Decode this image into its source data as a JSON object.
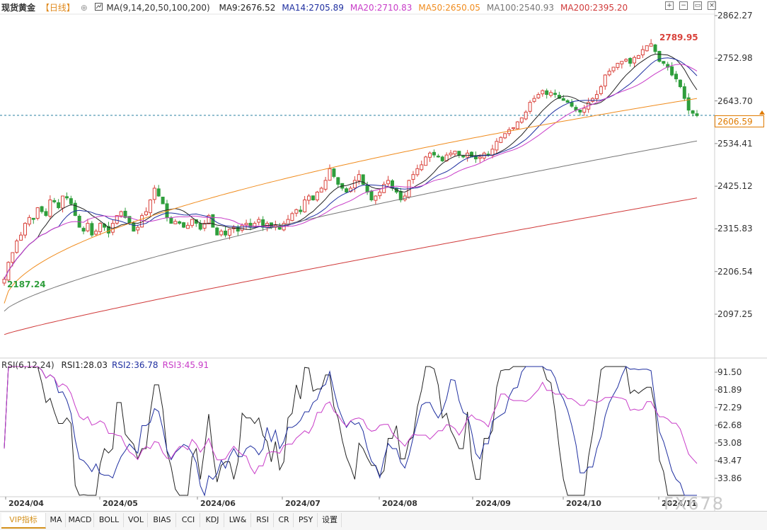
{
  "header": {
    "title": "现货黄金",
    "period": "【日线】",
    "circle_icon": "⊕",
    "ma_set_label": "MA(9,14,20,50,100,200)",
    "ma_values": [
      {
        "label": "MA9:2676.52",
        "color": "#222222"
      },
      {
        "label": "MA14:2705.89",
        "color": "#1f2fa0"
      },
      {
        "label": "MA20:2710.83",
        "color": "#c83cc8"
      },
      {
        "label": "MA50:2650.05",
        "color": "#f08c1e"
      },
      {
        "label": "MA100:2540.93",
        "color": "#777777"
      },
      {
        "label": "MA200:2395.20",
        "color": "#d03a3a"
      }
    ]
  },
  "toolbar_icons": [
    "zoom-in-icon",
    "zoom-out-icon",
    "collapse-icon",
    "close-icon"
  ],
  "price_axis": [
    "2862.27",
    "2752.98",
    "2643.70",
    "2534.41",
    "2425.12",
    "2315.83",
    "2206.54",
    "2097.25"
  ],
  "current_price": "2606.59",
  "high_label": "2789.95",
  "low_label": "2187.24",
  "rsi": {
    "header": "RSI(6,12,24)",
    "values": [
      {
        "label": "RSI1:28.03",
        "color": "#222222"
      },
      {
        "label": "RSI2:36.78",
        "color": "#1f2fa0"
      },
      {
        "label": "RSI3:45.91",
        "color": "#c83cc8"
      }
    ],
    "axis": [
      "91.50",
      "81.89",
      "72.29",
      "62.68",
      "53.08",
      "43.47",
      "33.86"
    ]
  },
  "x_axis": [
    "2024/04",
    "2024/05",
    "2024/06",
    "2024/07",
    "2024/08",
    "2024/09",
    "2024/10",
    "2024/11"
  ],
  "tabs": [
    "VIP指标",
    "MA",
    "MACD",
    "BOLL",
    "VOL",
    "BIAS",
    "CCI",
    "KDJ",
    "LW&",
    "RSI",
    "CR",
    "PSY",
    "设置"
  ],
  "watermark": "FX678",
  "colors": {
    "up": "#d9423b",
    "down": "#2f9e3c"
  },
  "chart_data": {
    "type": "candlestick",
    "ylim": [
      2040,
      2880
    ],
    "approx_closes": [
      2187,
      2230,
      2255,
      2285,
      2300,
      2330,
      2345,
      2340,
      2370,
      2360,
      2350,
      2390,
      2385,
      2370,
      2400,
      2395,
      2380,
      2350,
      2320,
      2310,
      2330,
      2300,
      2310,
      2330,
      2320,
      2305,
      2330,
      2350,
      2360,
      2345,
      2330,
      2310,
      2320,
      2350,
      2360,
      2390,
      2420,
      2400,
      2380,
      2345,
      2330,
      2335,
      2330,
      2320,
      2325,
      2340,
      2330,
      2315,
      2330,
      2350,
      2320,
      2300,
      2310,
      2300,
      2315,
      2320,
      2310,
      2325,
      2330,
      2320,
      2330,
      2340,
      2320,
      2330,
      2320,
      2325,
      2315,
      2330,
      2340,
      2355,
      2365,
      2360,
      2390,
      2400,
      2390,
      2410,
      2420,
      2440,
      2470,
      2450,
      2430,
      2420,
      2410,
      2420,
      2440,
      2455,
      2430,
      2410,
      2390,
      2400,
      2410,
      2430,
      2440,
      2420,
      2410,
      2390,
      2400,
      2440,
      2455,
      2470,
      2480,
      2500,
      2510,
      2505,
      2500,
      2490,
      2505,
      2510,
      2515,
      2505,
      2500,
      2510,
      2500,
      2495,
      2500,
      2510,
      2505,
      2520,
      2540,
      2550,
      2560,
      2570,
      2575,
      2590,
      2600,
      2615,
      2640,
      2650,
      2660,
      2670,
      2660,
      2665,
      2660,
      2650,
      2645,
      2640,
      2630,
      2620,
      2615,
      2625,
      2640,
      2650,
      2660,
      2680,
      2710,
      2720,
      2730,
      2740,
      2745,
      2750,
      2740,
      2755,
      2760,
      2775,
      2785,
      2790,
      2770,
      2745,
      2740,
      2730,
      2710,
      2700,
      2680,
      2650,
      2620,
      2612,
      2606
    ],
    "ma_series": [
      "MA9",
      "MA14",
      "MA20",
      "MA50",
      "MA100",
      "MA200"
    ],
    "rsi_series": [
      "RSI1",
      "RSI2",
      "RSI3"
    ],
    "rsi_ylim": [
      25,
      95
    ]
  }
}
